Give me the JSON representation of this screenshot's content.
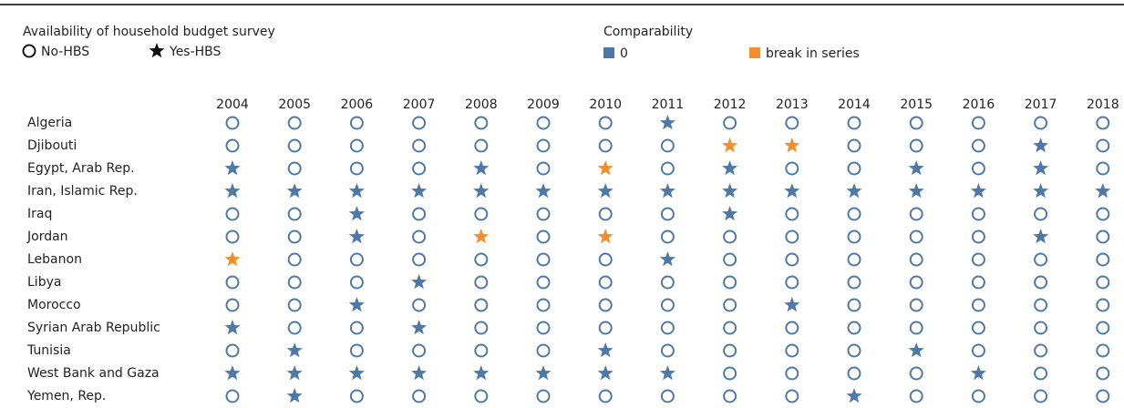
{
  "legend": {
    "hbs": {
      "title": "Availability of household budget survey",
      "items": [
        "No-HBS",
        "Yes-HBS"
      ]
    },
    "comparability": {
      "title": "Comparability",
      "items": [
        "0",
        "break in series"
      ],
      "colors": [
        "#4e79a7",
        "#f28e2b"
      ]
    }
  },
  "years": [
    "2004",
    "2005",
    "2006",
    "2007",
    "2008",
    "2009",
    "2010",
    "2011",
    "2012",
    "2013",
    "2014",
    "2015",
    "2016",
    "2017",
    "2018"
  ],
  "rows": [
    {
      "country": "Algeria",
      "hbs": [
        0,
        0,
        0,
        0,
        0,
        0,
        0,
        1,
        0,
        0,
        0,
        0,
        0,
        0,
        0
      ],
      "comparability": [
        0,
        0,
        0,
        0,
        0,
        0,
        0,
        0,
        0,
        0,
        0,
        0,
        0,
        0,
        0
      ]
    },
    {
      "country": "Djibouti",
      "hbs": [
        0,
        0,
        0,
        0,
        0,
        0,
        0,
        0,
        1,
        1,
        0,
        0,
        0,
        1,
        0
      ],
      "comparability": [
        0,
        0,
        0,
        0,
        0,
        0,
        0,
        0,
        1,
        1,
        0,
        0,
        0,
        0,
        0
      ]
    },
    {
      "country": "Egypt, Arab Rep.",
      "hbs": [
        1,
        0,
        0,
        0,
        1,
        0,
        1,
        0,
        1,
        0,
        0,
        1,
        0,
        1,
        0
      ],
      "comparability": [
        0,
        0,
        0,
        0,
        0,
        0,
        1,
        0,
        0,
        0,
        0,
        0,
        0,
        0,
        0
      ]
    },
    {
      "country": "Iran, Islamic Rep.",
      "hbs": [
        1,
        1,
        1,
        1,
        1,
        1,
        1,
        1,
        1,
        1,
        1,
        1,
        1,
        1,
        1
      ],
      "comparability": [
        0,
        0,
        0,
        0,
        0,
        0,
        0,
        0,
        0,
        0,
        0,
        0,
        0,
        0,
        0
      ]
    },
    {
      "country": "Iraq",
      "hbs": [
        0,
        0,
        1,
        0,
        0,
        0,
        0,
        0,
        1,
        0,
        0,
        0,
        0,
        0,
        0
      ],
      "comparability": [
        0,
        0,
        0,
        0,
        0,
        0,
        0,
        0,
        0,
        0,
        0,
        0,
        0,
        0,
        0
      ]
    },
    {
      "country": "Jordan",
      "hbs": [
        0,
        0,
        1,
        0,
        1,
        0,
        1,
        0,
        0,
        0,
        0,
        0,
        0,
        1,
        0
      ],
      "comparability": [
        0,
        0,
        0,
        0,
        1,
        0,
        1,
        0,
        0,
        0,
        0,
        0,
        0,
        0,
        0
      ]
    },
    {
      "country": "Lebanon",
      "hbs": [
        1,
        0,
        0,
        0,
        0,
        0,
        0,
        1,
        0,
        0,
        0,
        0,
        0,
        0,
        0
      ],
      "comparability": [
        1,
        0,
        0,
        0,
        0,
        0,
        0,
        0,
        0,
        0,
        0,
        0,
        0,
        0,
        0
      ]
    },
    {
      "country": "Libya",
      "hbs": [
        0,
        0,
        0,
        1,
        0,
        0,
        0,
        0,
        0,
        0,
        0,
        0,
        0,
        0,
        0
      ],
      "comparability": [
        0,
        0,
        0,
        0,
        0,
        0,
        0,
        0,
        0,
        0,
        0,
        0,
        0,
        0,
        0
      ]
    },
    {
      "country": "Morocco",
      "hbs": [
        0,
        0,
        1,
        0,
        0,
        0,
        0,
        0,
        0,
        1,
        0,
        0,
        0,
        0,
        0
      ],
      "comparability": [
        0,
        0,
        0,
        0,
        0,
        0,
        0,
        0,
        0,
        0,
        0,
        0,
        0,
        0,
        0
      ]
    },
    {
      "country": "Syrian Arab Republic",
      "hbs": [
        1,
        0,
        0,
        1,
        0,
        0,
        0,
        0,
        0,
        0,
        0,
        0,
        0,
        0,
        0
      ],
      "comparability": [
        0,
        0,
        0,
        0,
        0,
        0,
        0,
        0,
        0,
        0,
        0,
        0,
        0,
        0,
        0
      ]
    },
    {
      "country": "Tunisia",
      "hbs": [
        0,
        1,
        0,
        0,
        0,
        0,
        1,
        0,
        0,
        0,
        0,
        1,
        0,
        0,
        0
      ],
      "comparability": [
        0,
        0,
        0,
        0,
        0,
        0,
        0,
        0,
        0,
        0,
        0,
        0,
        0,
        0,
        0
      ]
    },
    {
      "country": "West Bank and Gaza",
      "hbs": [
        1,
        1,
        1,
        1,
        1,
        1,
        1,
        1,
        0,
        0,
        0,
        0,
        1,
        0,
        0
      ],
      "comparability": [
        0,
        0,
        0,
        0,
        0,
        0,
        0,
        0,
        0,
        0,
        0,
        0,
        0,
        0,
        0
      ]
    },
    {
      "country": "Yemen, Rep.",
      "hbs": [
        0,
        1,
        0,
        0,
        0,
        0,
        0,
        0,
        0,
        0,
        1,
        0,
        0,
        0,
        0
      ],
      "comparability": [
        0,
        0,
        0,
        0,
        0,
        0,
        0,
        0,
        0,
        0,
        0,
        0,
        0,
        0,
        0
      ]
    }
  ]
}
